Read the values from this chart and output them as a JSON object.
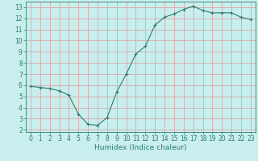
{
  "x": [
    0,
    1,
    2,
    3,
    4,
    5,
    6,
    7,
    8,
    9,
    10,
    11,
    12,
    13,
    14,
    15,
    16,
    17,
    18,
    19,
    20,
    21,
    22,
    23
  ],
  "y": [
    5.9,
    5.8,
    5.7,
    5.5,
    5.1,
    3.4,
    2.5,
    2.4,
    3.1,
    5.4,
    7.0,
    8.8,
    9.5,
    11.4,
    12.1,
    12.4,
    12.8,
    13.1,
    12.7,
    12.5,
    12.5,
    12.5,
    12.1,
    11.9
  ],
  "line_color": "#2e7d6e",
  "marker": "+",
  "bg_color": "#c8eeee",
  "grid_color": "#dba8a8",
  "xlabel": "Humidex (Indice chaleur)",
  "xlim": [
    -0.5,
    23.5
  ],
  "ylim": [
    1.8,
    13.5
  ],
  "yticks": [
    2,
    3,
    4,
    5,
    6,
    7,
    8,
    9,
    10,
    11,
    12,
    13
  ],
  "xticks": [
    0,
    1,
    2,
    3,
    4,
    5,
    6,
    7,
    8,
    9,
    10,
    11,
    12,
    13,
    14,
    15,
    16,
    17,
    18,
    19,
    20,
    21,
    22,
    23
  ],
  "tick_label_fontsize": 5.5,
  "xlabel_fontsize": 6.5,
  "line_width": 0.8,
  "marker_size": 3.5,
  "marker_ew": 0.8
}
